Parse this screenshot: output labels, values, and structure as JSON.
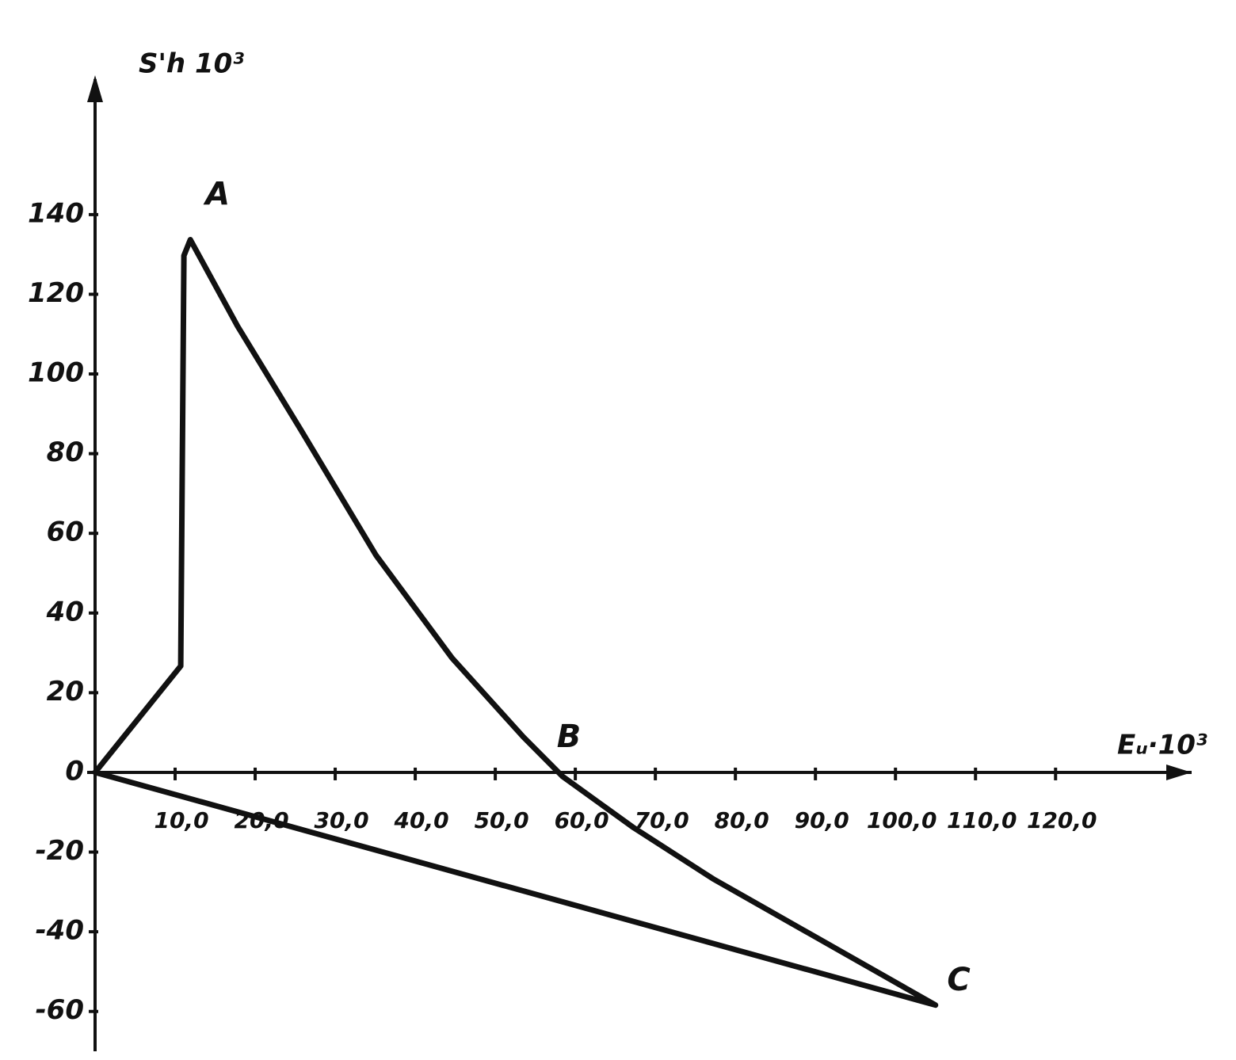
{
  "chart_data": {
    "type": "line",
    "y_label": "S'h 10³",
    "x_label": "Eᵤ·10³",
    "x": [
      0,
      10.7,
      11.1,
      11.9,
      17.8,
      25.7,
      35.1,
      44.6,
      53.5,
      58.4,
      67.3,
      77.2,
      105,
      0
    ],
    "values": [
      0,
      26.7,
      129.7,
      133.7,
      112,
      86,
      54.5,
      28.7,
      8.9,
      -1,
      -13.9,
      -26.7,
      -58.4,
      0
    ],
    "color": "#111111",
    "xlim": [
      0,
      137
    ],
    "ylim": [
      -70,
      170
    ],
    "xticks": [
      {
        "value": 10,
        "label": "10,0"
      },
      {
        "value": 20,
        "label": "20,0"
      },
      {
        "value": 30,
        "label": "30,0"
      },
      {
        "value": 40,
        "label": "40,0"
      },
      {
        "value": 50,
        "label": "50,0"
      },
      {
        "value": 60,
        "label": "60,0"
      },
      {
        "value": 70,
        "label": "70,0"
      },
      {
        "value": 80,
        "label": "80,0"
      },
      {
        "value": 90,
        "label": "90,0"
      },
      {
        "value": 100,
        "label": "100,0"
      },
      {
        "value": 110,
        "label": "110,0"
      },
      {
        "value": 120,
        "label": "120,0"
      }
    ],
    "yticks": [
      -60,
      -40,
      -20,
      0,
      20,
      40,
      60,
      80,
      100,
      120,
      140
    ],
    "grid": false,
    "annotations": [
      {
        "text": "A",
        "x": 15.3,
        "y": 144.6
      },
      {
        "text": "B",
        "x": 59.2,
        "y": 8.5
      },
      {
        "text": "C",
        "x": 107.9,
        "y": -52.5
      }
    ]
  }
}
